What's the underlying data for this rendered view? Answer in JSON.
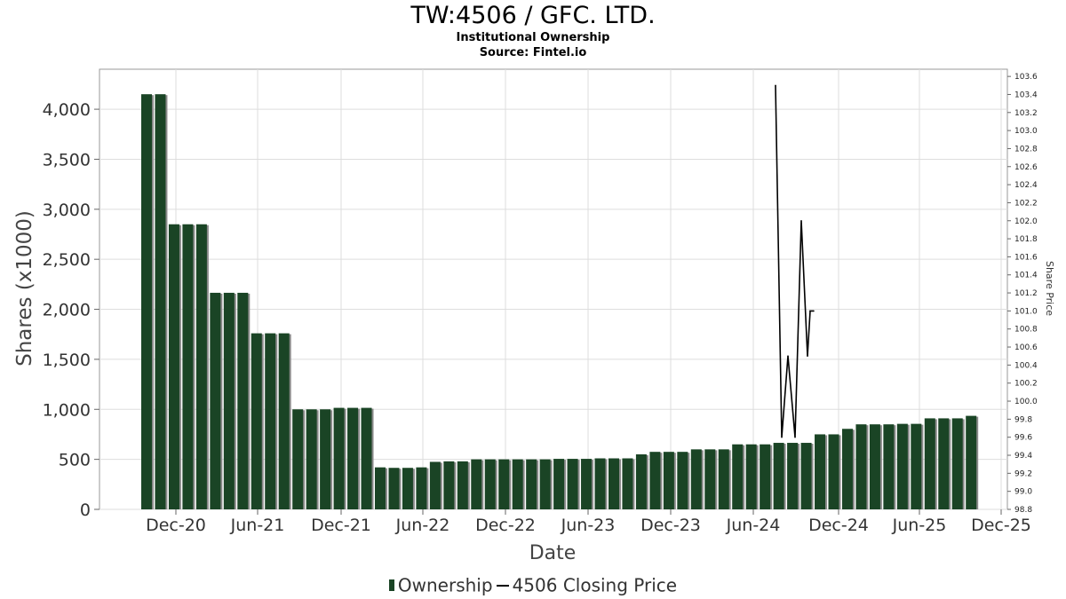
{
  "header": {
    "title": "TW:4506 / GFC. LTD.",
    "subtitle1": "Institutional Ownership",
    "subtitle2": "Source: Fintel.io"
  },
  "legend": {
    "ownership_label": "Ownership",
    "price_label": "4506 Closing Price"
  },
  "colors": {
    "bar": "#1a4425",
    "bar_shadow": "#8a8a8a",
    "price_line": "#000000",
    "grid": "#dddddd"
  },
  "chart_data": {
    "type": "bar",
    "xlabel": "Date",
    "ylabel": "Shares (x1000)",
    "y2label": "Share Price",
    "ylim": [
      0,
      4400
    ],
    "y2lim": [
      98.8,
      103.68
    ],
    "x_ticks": [
      "Dec-20",
      "Jun-21",
      "Dec-21",
      "Jun-22",
      "Dec-22",
      "Jun-23",
      "Dec-23",
      "Jun-24",
      "Dec-24",
      "Jun-25",
      "Dec-25"
    ],
    "y_ticks": [
      0,
      500,
      1000,
      1500,
      2000,
      2500,
      3000,
      3500,
      4000
    ],
    "y_tick_labels": [
      "0",
      "500",
      "1,000",
      "1,500",
      "2,000",
      "2,500",
      "3,000",
      "3,500",
      "4,000"
    ],
    "y2_ticks": [
      "98.8",
      "99.0",
      "99.2",
      "99.4",
      "99.6",
      "99.8",
      "100.0",
      "100.2",
      "100.4",
      "100.6",
      "100.8",
      "101.0",
      "101.2",
      "101.4",
      "101.6",
      "101.8",
      "102.0",
      "102.2",
      "102.4",
      "102.6",
      "102.8",
      "103.0",
      "103.2",
      "103.4",
      "103.6"
    ],
    "grid": true,
    "legend_position": "bottom",
    "series": [
      {
        "name": "Ownership",
        "type": "bar",
        "values": [
          4150,
          4150,
          2850,
          2850,
          2850,
          2165,
          2165,
          2165,
          1760,
          1760,
          1760,
          1000,
          1000,
          1000,
          1015,
          1015,
          1015,
          420,
          415,
          415,
          420,
          475,
          480,
          480,
          500,
          500,
          500,
          500,
          500,
          500,
          505,
          505,
          505,
          510,
          510,
          510,
          550,
          575,
          575,
          575,
          600,
          600,
          600,
          650,
          650,
          650,
          665,
          665,
          665,
          750,
          750,
          805,
          850,
          850,
          850,
          855,
          855,
          910,
          910,
          910,
          935
        ]
      },
      {
        "name": "4506 Closing Price",
        "type": "line",
        "x_start": "Jul-24",
        "values": [
          103.5,
          99.6,
          100.5,
          99.6,
          102.0,
          100.5,
          101.0,
          101.0
        ]
      }
    ]
  }
}
